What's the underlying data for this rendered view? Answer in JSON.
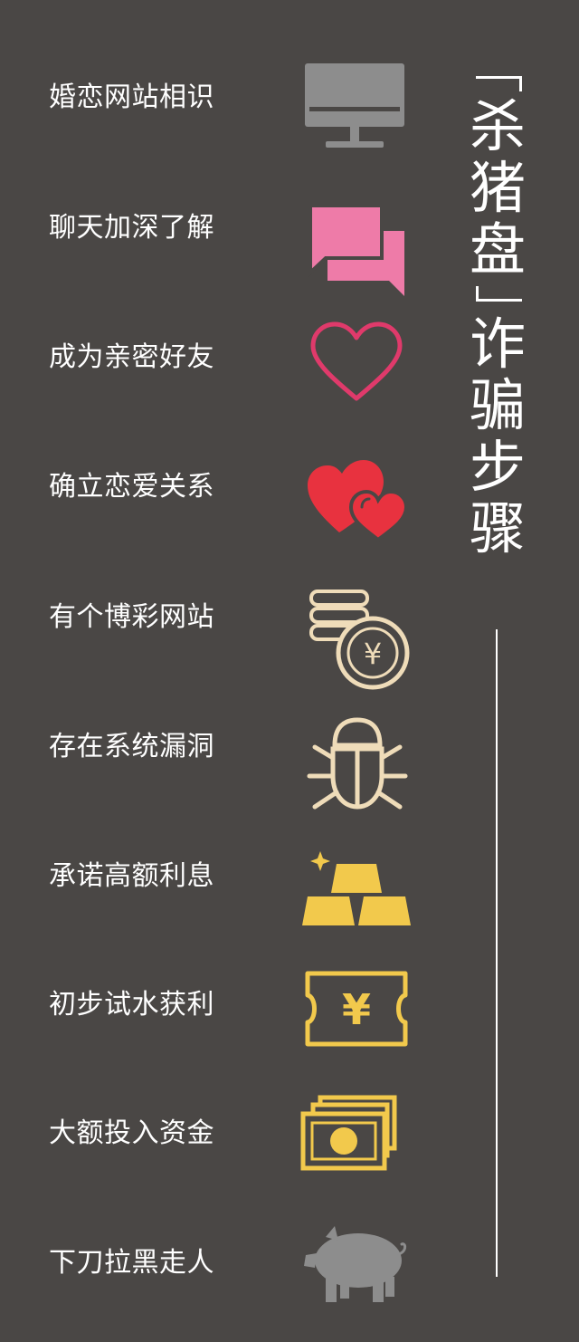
{
  "title": {
    "bracket_open": "「",
    "chars": [
      "杀",
      "猪",
      "盘"
    ],
    "bracket_close": "」",
    "chars2": [
      "诈",
      "骗",
      "步",
      "骤"
    ]
  },
  "steps": [
    {
      "label": "婚恋网站相识",
      "icon": "computer-monitor-icon",
      "color": "#8d8d8d"
    },
    {
      "label": "聊天加深了解",
      "icon": "chat-bubbles-icon",
      "color": "#ee7ba8"
    },
    {
      "label": "成为亲密好友",
      "icon": "heart-outline-icon",
      "color": "#e03a6b"
    },
    {
      "label": "确立恋爱关系",
      "icon": "double-heart-icon",
      "color": "#e8323f"
    },
    {
      "label": "有个博彩网站",
      "icon": "coins-yuan-icon",
      "color": "#efdcb9"
    },
    {
      "label": "存在系统漏洞",
      "icon": "bug-icon",
      "color": "#efdcb9"
    },
    {
      "label": "承诺高额利息",
      "icon": "gold-bars-icon",
      "color": "#f2c94c"
    },
    {
      "label": "初步试水获利",
      "icon": "yuan-ticket-icon",
      "color": "#f2c94c"
    },
    {
      "label": "大额投入资金",
      "icon": "cash-stack-icon",
      "color": "#f2c94c"
    },
    {
      "label": "下刀拉黑走人",
      "icon": "pig-icon",
      "color": "#8d8d8d"
    }
  ]
}
